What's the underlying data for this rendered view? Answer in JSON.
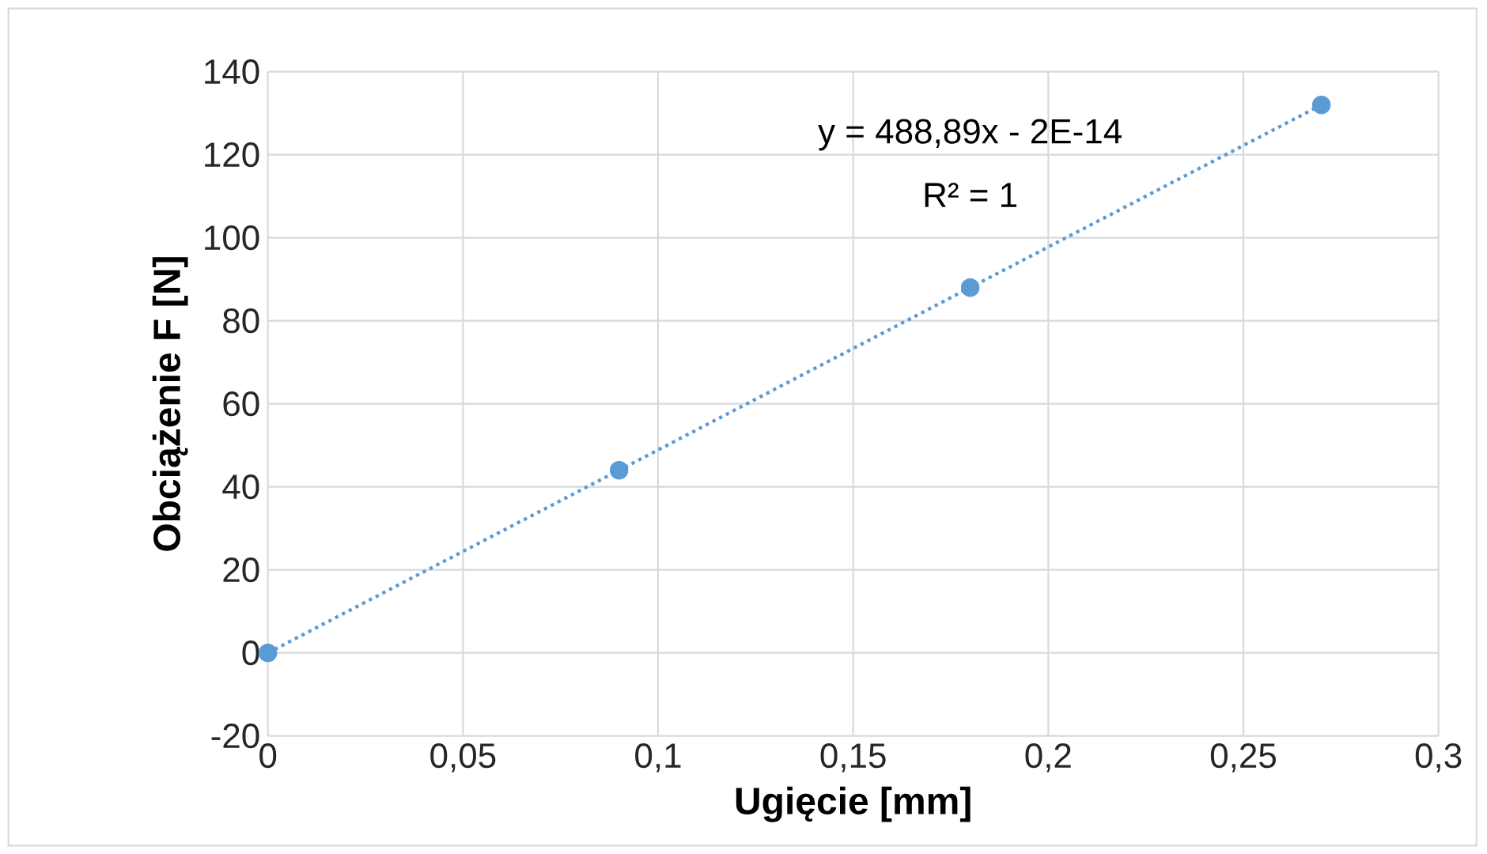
{
  "chart_data": {
    "type": "scatter",
    "xlabel": "Ugięcie  [mm]",
    "ylabel": "Obciążenie F [N]",
    "series": [
      {
        "color": "#5b9bd5",
        "x": [
          0,
          0.09,
          0.18,
          0.27
        ],
        "values": [
          0,
          44,
          88,
          132
        ],
        "marker": "circle"
      },
      {
        "type": "line",
        "color": "#5b9bd5",
        "x": [
          0,
          0.27
        ],
        "values": [
          0,
          132
        ],
        "line_style": "dotted",
        "marker": "none"
      }
    ],
    "annotations": [
      "y = 488,89x - 2E-14",
      "R² = 1"
    ],
    "xlim": [
      0,
      0.3
    ],
    "ylim": [
      -20,
      140
    ],
    "xticks": [
      0,
      {
        "value": 0.05,
        "label": "0,05"
      },
      {
        "value": 0.1,
        "label": "0,1"
      },
      {
        "value": 0.15,
        "label": "0,15"
      },
      {
        "value": 0.2,
        "label": "0,2"
      },
      {
        "value": 0.25,
        "label": "0,25"
      },
      {
        "value": 0.3,
        "label": "0,3"
      }
    ],
    "yticks": [
      -20,
      0,
      20,
      40,
      60,
      80,
      100,
      120,
      140
    ],
    "grid": true
  }
}
